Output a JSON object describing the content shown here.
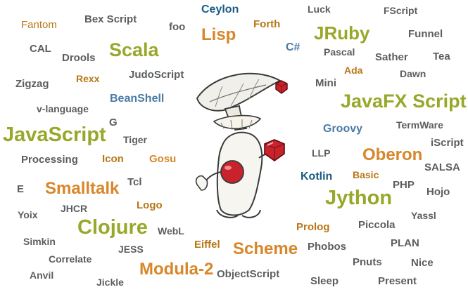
{
  "colors": {
    "gray": "#5b5e60",
    "olive": "#98a82a",
    "orange": "#d8862a",
    "blue": "#4a7ba7",
    "dark_blue": "#1b5c84",
    "brown": "#b87716",
    "ruby": "#c8232c"
  },
  "mascot": {
    "icon": "duke-java-mascot-with-mushroom-and-ruby-icon"
  },
  "words": [
    "Fantom",
    "Bex Script",
    "Ceylon",
    "foo",
    "Lisp",
    "Forth",
    "Luck",
    "FScript",
    "JRuby",
    "Funnel",
    "CAL",
    "Scala",
    "Drools",
    "C#",
    "Pascal",
    "Sather",
    "Tea",
    "Rexx",
    "JudoScript",
    "Ada",
    "Dawn",
    "Zigzag",
    "Mini",
    "BeanShell",
    "JavaFX Script",
    "v-language",
    "G",
    "Groovy",
    "TermWare",
    "JavaScript",
    "Tiger",
    "iScript",
    "Processing",
    "Icon",
    "Gosu",
    "LLP",
    "Oberon",
    "SALSA",
    "Kotlin",
    "Basic",
    "E",
    "Smalltalk",
    "Tcl",
    "PHP",
    "Hojo",
    "Jython",
    "Yoix",
    "JHCR",
    "Logo",
    "Yassl",
    "Clojure",
    "WebL",
    "Prolog",
    "Piccola",
    "Simkin",
    "Eiffel",
    "Scheme",
    "Phobos",
    "PLAN",
    "Correlate",
    "JESS",
    "Pnuts",
    "Nice",
    "Modula-2",
    "ObjectScript",
    "Anvil",
    "Jickle",
    "Sleep",
    "Present"
  ]
}
